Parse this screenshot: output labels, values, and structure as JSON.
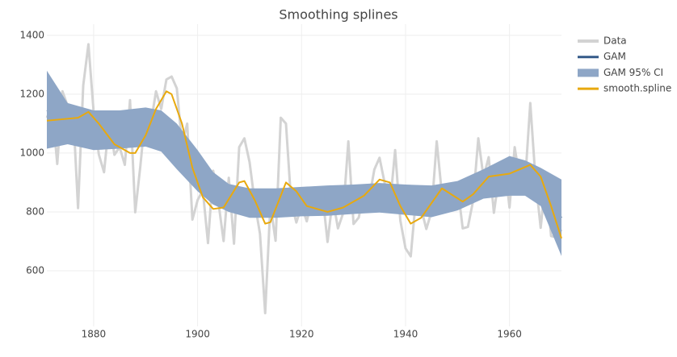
{
  "chart_data": {
    "type": "line",
    "title": "Smoothing splines",
    "xlim": [
      1871,
      1970
    ],
    "ylim": [
      411,
      1438
    ],
    "xticks": [
      1880,
      1900,
      1920,
      1940,
      1960
    ],
    "yticks": [
      600,
      800,
      1000,
      1200,
      1400
    ],
    "grid": true,
    "legend": "right",
    "series": [
      {
        "name": "Data",
        "kind": "line",
        "color": "#d3d3d3",
        "width": 3,
        "x": [
          1871,
          1872,
          1873,
          1874,
          1875,
          1876,
          1877,
          1878,
          1879,
          1880,
          1881,
          1882,
          1883,
          1884,
          1885,
          1886,
          1887,
          1888,
          1889,
          1890,
          1891,
          1892,
          1893,
          1894,
          1895,
          1896,
          1897,
          1898,
          1899,
          1900,
          1901,
          1902,
          1903,
          1904,
          1905,
          1906,
          1907,
          1908,
          1909,
          1910,
          1911,
          1912,
          1913,
          1914,
          1915,
          1916,
          1917,
          1918,
          1919,
          1920,
          1921,
          1922,
          1923,
          1924,
          1925,
          1926,
          1927,
          1928,
          1929,
          1930,
          1931,
          1932,
          1933,
          1934,
          1935,
          1936,
          1937,
          1938,
          1939,
          1940,
          1941,
          1942,
          1943,
          1944,
          1945,
          1946,
          1947,
          1948,
          1949,
          1950,
          1951,
          1952,
          1953,
          1954,
          1955,
          1956,
          1957,
          1958,
          1959,
          1960,
          1961,
          1962,
          1963,
          1964,
          1965,
          1966,
          1967,
          1968,
          1969,
          1970
        ],
        "values": [
          1120,
          1160,
          963,
          1210,
          1160,
          1160,
          813,
          1230,
          1370,
          1140,
          995,
          935,
          1110,
          994,
          1020,
          960,
          1180,
          799,
          958,
          1140,
          1100,
          1210,
          1150,
          1250,
          1260,
          1220,
          1030,
          1100,
          774,
          840,
          874,
          694,
          940,
          833,
          701,
          916,
          692,
          1020,
          1050,
          969,
          831,
          726,
          456,
          824,
          702,
          1120,
          1100,
          832,
          764,
          821,
          768,
          845,
          864,
          862,
          698,
          845,
          744,
          796,
          1040,
          759,
          781,
          865,
          845,
          944,
          984,
          897,
          822,
          1010,
          771,
          676,
          649,
          846,
          812,
          742,
          801,
          1040,
          860,
          874,
          848,
          890,
          744,
          749,
          838,
          1050,
          918,
          986,
          797,
          923,
          975,
          815,
          1020,
          906,
          901,
          1170,
          912,
          746,
          919,
          718,
          714,
          740
        ]
      },
      {
        "name": "GAM",
        "kind": "line",
        "color": "#345a89",
        "width": 2,
        "x": [
          1871,
          1875,
          1880,
          1885,
          1890,
          1893,
          1896,
          1900,
          1903,
          1906,
          1910,
          1915,
          1920,
          1925,
          1930,
          1935,
          1940,
          1945,
          1950,
          1955,
          1960,
          1963,
          1966,
          1970
        ],
        "values": [
          1145,
          1110,
          1075,
          1080,
          1088,
          1075,
          1020,
          940,
          880,
          850,
          830,
          830,
          835,
          838,
          843,
          848,
          840,
          835,
          855,
          895,
          925,
          930,
          890,
          780
        ]
      },
      {
        "name": "GAM 95% CI",
        "kind": "band",
        "color": "#8ea6c6",
        "x": [
          1871,
          1875,
          1880,
          1885,
          1890,
          1893,
          1896,
          1900,
          1903,
          1906,
          1910,
          1915,
          1920,
          1925,
          1930,
          1935,
          1940,
          1945,
          1950,
          1955,
          1960,
          1963,
          1966,
          1970
        ],
        "upper": [
          1280,
          1170,
          1145,
          1145,
          1155,
          1145,
          1100,
          1010,
          935,
          895,
          880,
          880,
          885,
          890,
          893,
          898,
          893,
          890,
          905,
          945,
          990,
          975,
          950,
          910
        ],
        "lower": [
          1015,
          1030,
          1010,
          1015,
          1022,
          1005,
          945,
          870,
          825,
          800,
          780,
          780,
          785,
          787,
          793,
          798,
          790,
          782,
          805,
          845,
          855,
          855,
          820,
          650
        ]
      },
      {
        "name": "smooth.spline",
        "kind": "line",
        "color": "#e8a90e",
        "width": 2,
        "x": [
          1871,
          1874,
          1877,
          1879,
          1881,
          1884,
          1887,
          1888,
          1890,
          1892,
          1894,
          1895,
          1897,
          1899,
          1901,
          1903,
          1905,
          1908,
          1909,
          1911,
          1913,
          1914,
          1917,
          1919,
          1921,
          1925,
          1928,
          1932,
          1935,
          1937,
          1939,
          1941,
          1943,
          1947,
          1951,
          1953,
          1956,
          1960,
          1964,
          1966,
          1968,
          1970
        ],
        "values": [
          1110,
          1115,
          1120,
          1140,
          1100,
          1030,
          1000,
          1000,
          1060,
          1150,
          1210,
          1200,
          1100,
          950,
          850,
          810,
          815,
          900,
          905,
          840,
          760,
          765,
          900,
          870,
          820,
          800,
          815,
          855,
          910,
          900,
          820,
          760,
          780,
          880,
          835,
          860,
          920,
          930,
          960,
          920,
          820,
          710
        ]
      }
    ]
  }
}
